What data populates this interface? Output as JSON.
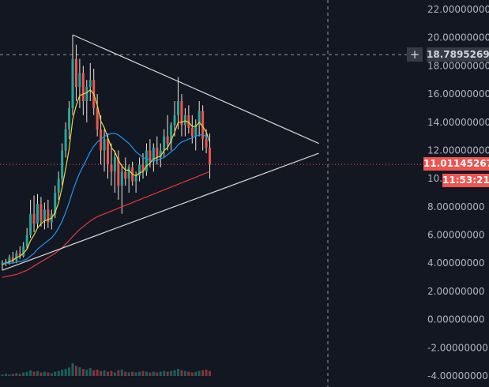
{
  "chart_data": {
    "type": "candlestick",
    "title": "",
    "xlabel": "",
    "ylabel": "",
    "ylim": [
      -4,
      22
    ],
    "y_ticks": [
      "22.00000000",
      "20.00000000",
      "18.00000000",
      "16.00000000",
      "14.00000000",
      "12.00000000",
      "10.00000000",
      "8.00000000",
      "6.00000000",
      "4.00000000",
      "2.00000000",
      "0.00000000",
      "-2.00000000",
      "-4.00000000"
    ],
    "grid": false,
    "crosshair_price": "18.78952692",
    "last_price": "11.01145267",
    "countdown": "11:53:21",
    "candles": [
      {
        "o": 3.9,
        "h": 4.2,
        "l": 3.5,
        "c": 4.0
      },
      {
        "o": 4.0,
        "h": 4.3,
        "l": 3.8,
        "c": 4.1
      },
      {
        "o": 4.1,
        "h": 4.6,
        "l": 3.9,
        "c": 4.4
      },
      {
        "o": 4.4,
        "h": 4.8,
        "l": 4.0,
        "c": 4.2
      },
      {
        "o": 4.2,
        "h": 4.9,
        "l": 4.0,
        "c": 4.7
      },
      {
        "o": 4.7,
        "h": 5.2,
        "l": 4.3,
        "c": 4.5
      },
      {
        "o": 4.5,
        "h": 5.5,
        "l": 4.4,
        "c": 5.2
      },
      {
        "o": 5.2,
        "h": 6.5,
        "l": 5.0,
        "c": 6.0
      },
      {
        "o": 6.0,
        "h": 8.5,
        "l": 5.8,
        "c": 7.5
      },
      {
        "o": 7.5,
        "h": 8.8,
        "l": 6.2,
        "c": 6.8
      },
      {
        "o": 6.8,
        "h": 8.9,
        "l": 6.5,
        "c": 8.2
      },
      {
        "o": 8.2,
        "h": 8.7,
        "l": 6.6,
        "c": 7.0
      },
      {
        "o": 7.0,
        "h": 8.3,
        "l": 6.4,
        "c": 7.8
      },
      {
        "o": 7.8,
        "h": 8.5,
        "l": 6.5,
        "c": 6.9
      },
      {
        "o": 6.9,
        "h": 7.8,
        "l": 6.4,
        "c": 7.5
      },
      {
        "o": 7.5,
        "h": 9.5,
        "l": 7.2,
        "c": 9.0
      },
      {
        "o": 9.0,
        "h": 10.5,
        "l": 8.5,
        "c": 10.0
      },
      {
        "o": 10.0,
        "h": 12.5,
        "l": 9.5,
        "c": 12.0
      },
      {
        "o": 12.0,
        "h": 14.0,
        "l": 11.5,
        "c": 13.5
      },
      {
        "o": 13.5,
        "h": 15.5,
        "l": 12.8,
        "c": 15.0
      },
      {
        "o": 15.0,
        "h": 20.2,
        "l": 14.5,
        "c": 18.5
      },
      {
        "o": 18.5,
        "h": 19.5,
        "l": 15.5,
        "c": 16.5
      },
      {
        "o": 16.5,
        "h": 18.5,
        "l": 15.0,
        "c": 17.5
      },
      {
        "o": 17.5,
        "h": 18.0,
        "l": 14.5,
        "c": 15.5
      },
      {
        "o": 15.5,
        "h": 17.0,
        "l": 14.0,
        "c": 16.5
      },
      {
        "o": 16.5,
        "h": 18.2,
        "l": 15.5,
        "c": 17.0
      },
      {
        "o": 17.0,
        "h": 17.8,
        "l": 14.5,
        "c": 15.0
      },
      {
        "o": 15.0,
        "h": 16.0,
        "l": 13.0,
        "c": 13.5
      },
      {
        "o": 13.5,
        "h": 14.5,
        "l": 11.0,
        "c": 12.0
      },
      {
        "o": 12.0,
        "h": 13.5,
        "l": 10.5,
        "c": 12.8
      },
      {
        "o": 12.8,
        "h": 13.2,
        "l": 10.0,
        "c": 11.0
      },
      {
        "o": 11.0,
        "h": 12.5,
        "l": 9.5,
        "c": 10.5
      },
      {
        "o": 10.5,
        "h": 12.0,
        "l": 9.0,
        "c": 11.5
      },
      {
        "o": 11.5,
        "h": 12.0,
        "l": 8.5,
        "c": 9.5
      },
      {
        "o": 9.5,
        "h": 11.0,
        "l": 7.5,
        "c": 10.5
      },
      {
        "o": 10.5,
        "h": 11.5,
        "l": 9.5,
        "c": 10.0
      },
      {
        "o": 10.0,
        "h": 11.0,
        "l": 9.0,
        "c": 10.8
      },
      {
        "o": 10.8,
        "h": 11.2,
        "l": 9.5,
        "c": 9.8
      },
      {
        "o": 9.8,
        "h": 10.5,
        "l": 9.0,
        "c": 10.2
      },
      {
        "o": 10.2,
        "h": 11.5,
        "l": 9.8,
        "c": 11.0
      },
      {
        "o": 11.0,
        "h": 11.8,
        "l": 10.0,
        "c": 10.5
      },
      {
        "o": 10.5,
        "h": 12.5,
        "l": 10.2,
        "c": 12.0
      },
      {
        "o": 12.0,
        "h": 12.8,
        "l": 10.8,
        "c": 11.2
      },
      {
        "o": 11.2,
        "h": 12.5,
        "l": 10.5,
        "c": 12.2
      },
      {
        "o": 12.2,
        "h": 13.0,
        "l": 11.0,
        "c": 11.5
      },
      {
        "o": 11.5,
        "h": 12.5,
        "l": 10.8,
        "c": 12.0
      },
      {
        "o": 12.0,
        "h": 13.5,
        "l": 11.5,
        "c": 13.0
      },
      {
        "o": 13.0,
        "h": 14.5,
        "l": 12.0,
        "c": 12.5
      },
      {
        "o": 12.5,
        "h": 14.0,
        "l": 12.0,
        "c": 13.8
      },
      {
        "o": 13.8,
        "h": 15.5,
        "l": 13.0,
        "c": 14.5
      },
      {
        "o": 14.5,
        "h": 17.2,
        "l": 13.5,
        "c": 15.5
      },
      {
        "o": 15.5,
        "h": 16.0,
        "l": 13.0,
        "c": 13.8
      },
      {
        "o": 13.8,
        "h": 15.0,
        "l": 13.0,
        "c": 14.5
      },
      {
        "o": 14.5,
        "h": 15.2,
        "l": 13.2,
        "c": 13.6
      },
      {
        "o": 13.6,
        "h": 14.5,
        "l": 12.5,
        "c": 13.0
      },
      {
        "o": 13.0,
        "h": 14.2,
        "l": 12.0,
        "c": 13.8
      },
      {
        "o": 13.8,
        "h": 15.5,
        "l": 13.0,
        "c": 14.8
      },
      {
        "o": 14.8,
        "h": 15.2,
        "l": 12.0,
        "c": 12.8
      },
      {
        "o": 12.8,
        "h": 13.5,
        "l": 11.8,
        "c": 12.2
      },
      {
        "o": 12.2,
        "h": 13.2,
        "l": 10.0,
        "c": 11.0
      }
    ],
    "series": [
      {
        "name": "",
        "color": "#e8d83a",
        "values": [
          3.9,
          4.0,
          4.1,
          4.2,
          4.4,
          4.5,
          4.7,
          5.0,
          5.6,
          6.0,
          6.5,
          6.8,
          7.0,
          7.1,
          7.2,
          7.6,
          8.3,
          9.4,
          10.7,
          12.1,
          14.2,
          15.2,
          15.9,
          16.0,
          16.1,
          16.3,
          16.0,
          15.2,
          14.1,
          13.6,
          12.9,
          12.2,
          11.9,
          11.3,
          10.9,
          10.6,
          10.6,
          10.3,
          10.2,
          10.4,
          10.5,
          10.9,
          11.1,
          11.4,
          11.5,
          11.6,
          12.0,
          12.2,
          12.7,
          13.3,
          14.0,
          14.0,
          14.1,
          14.0,
          13.7,
          13.7,
          14.0,
          13.7,
          13.3,
          12.6
        ]
      },
      {
        "name": "",
        "color": "#2196f3",
        "values": [
          4.0,
          4.0,
          4.0,
          4.0,
          4.1,
          4.1,
          4.2,
          4.3,
          4.5,
          4.7,
          5.0,
          5.2,
          5.4,
          5.6,
          5.8,
          6.1,
          6.5,
          7.0,
          7.6,
          8.3,
          9.1,
          9.8,
          10.4,
          10.9,
          11.4,
          11.9,
          12.3,
          12.6,
          12.8,
          13.0,
          13.1,
          13.2,
          13.2,
          13.1,
          12.9,
          12.7,
          12.5,
          12.2,
          11.9,
          11.7,
          11.5,
          11.4,
          11.3,
          11.3,
          11.3,
          11.4,
          11.5,
          11.7,
          11.9,
          12.1,
          12.4,
          12.6,
          12.7,
          12.8,
          12.9,
          13.0,
          13.1,
          13.1,
          13.0,
          12.8
        ]
      },
      {
        "name": "",
        "color": "#e53935",
        "values": [
          3.0,
          3.05,
          3.1,
          3.15,
          3.2,
          3.3,
          3.4,
          3.5,
          3.65,
          3.8,
          3.95,
          4.1,
          4.25,
          4.4,
          4.55,
          4.7,
          4.9,
          5.1,
          5.35,
          5.6,
          5.9,
          6.15,
          6.4,
          6.6,
          6.8,
          7.0,
          7.15,
          7.3,
          7.4,
          7.5,
          7.6,
          7.7,
          7.8,
          7.9,
          8.0,
          8.1,
          8.2,
          8.3,
          8.4,
          8.5,
          8.6,
          8.7,
          8.8,
          8.9,
          9.0,
          9.1,
          9.2,
          9.3,
          9.4,
          9.5,
          9.6,
          9.7,
          9.8,
          9.9,
          10.0,
          10.1,
          10.2,
          10.3,
          10.4,
          10.5
        ]
      }
    ],
    "trendlines": [
      {
        "from": [
          20,
          20.2
        ],
        "to": [
          90,
          12.5
        ]
      },
      {
        "from": [
          0,
          3.5
        ],
        "to": [
          90,
          11.8
        ]
      }
    ],
    "volume": [
      2,
      3,
      2,
      3,
      4,
      3,
      5,
      6,
      8,
      6,
      7,
      5,
      6,
      5,
      4,
      6,
      7,
      9,
      10,
      12,
      18,
      14,
      12,
      10,
      9,
      11,
      8,
      9,
      7,
      8,
      6,
      7,
      5,
      8,
      9,
      6,
      5,
      6,
      5,
      6,
      7,
      6,
      5,
      6,
      5,
      6,
      7,
      6,
      7,
      8,
      10,
      8,
      7,
      6,
      5,
      6,
      7,
      8,
      9,
      7
    ],
    "colors": {
      "background": "#131722",
      "up": "#26a69a",
      "down": "#ef5350",
      "wick": "#d1d4dc",
      "trendline": "#d8d8d8",
      "axis_text": "#b2b5be",
      "badge": "#363a45",
      "last_price_badge": "#f05350"
    }
  }
}
